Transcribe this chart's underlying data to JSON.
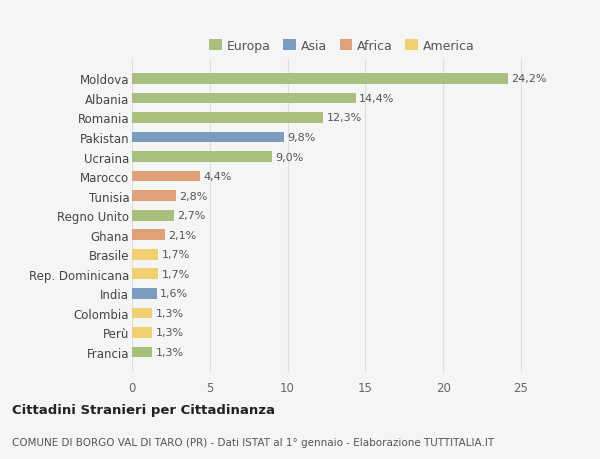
{
  "countries": [
    "Moldova",
    "Albania",
    "Romania",
    "Pakistan",
    "Ucraina",
    "Marocco",
    "Tunisia",
    "Regno Unito",
    "Ghana",
    "Brasile",
    "Rep. Dominicana",
    "India",
    "Colombia",
    "Perù",
    "Francia"
  ],
  "values": [
    24.2,
    14.4,
    12.3,
    9.8,
    9.0,
    4.4,
    2.8,
    2.7,
    2.1,
    1.7,
    1.7,
    1.6,
    1.3,
    1.3,
    1.3
  ],
  "labels": [
    "24,2%",
    "14,4%",
    "12,3%",
    "9,8%",
    "9,0%",
    "4,4%",
    "2,8%",
    "2,7%",
    "2,1%",
    "1,7%",
    "1,7%",
    "1,6%",
    "1,3%",
    "1,3%",
    "1,3%"
  ],
  "continents": [
    "Europa",
    "Europa",
    "Europa",
    "Asia",
    "Europa",
    "Africa",
    "Africa",
    "Europa",
    "Africa",
    "America",
    "America",
    "Asia",
    "America",
    "America",
    "Europa"
  ],
  "colors": {
    "Europa": "#a8c07e",
    "Asia": "#7a9dbf",
    "Africa": "#e0a07a",
    "America": "#f0d070"
  },
  "xlim": [
    0,
    27
  ],
  "xticks": [
    0,
    5,
    10,
    15,
    20,
    25
  ],
  "title": "Cittadini Stranieri per Cittadinanza",
  "subtitle": "COMUNE DI BORGO VAL DI TARO (PR) - Dati ISTAT al 1° gennaio - Elaborazione TUTTITALIA.IT",
  "bg_color": "#f5f5f5",
  "grid_color": "#dddddd",
  "bar_height": 0.55,
  "label_fontsize": 8.0,
  "ytick_fontsize": 8.5,
  "xtick_fontsize": 8.5,
  "legend_fontsize": 9.0,
  "title_fontsize": 9.5,
  "subtitle_fontsize": 7.5
}
